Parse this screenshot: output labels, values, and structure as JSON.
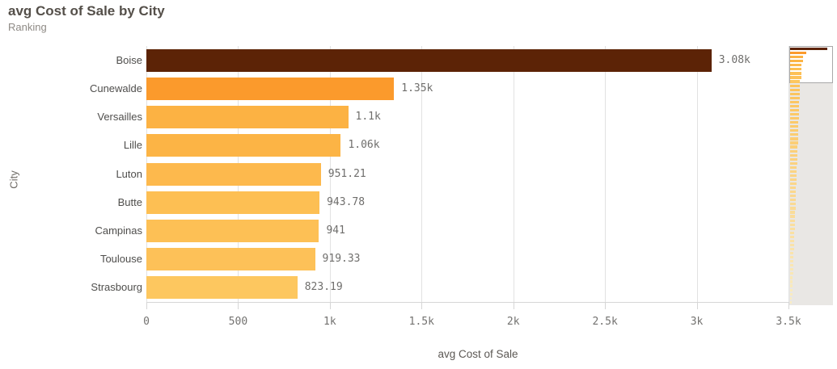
{
  "header": {
    "title": "avg Cost of Sale by City",
    "subtitle": "Ranking"
  },
  "chart_data": {
    "type": "bar",
    "orientation": "horizontal",
    "title": "avg Cost of Sale by City",
    "subtitle": "Ranking",
    "xlabel": "avg Cost of Sale",
    "ylabel": "City",
    "xlim": [
      0,
      3500
    ],
    "grid": "vertical",
    "xticks": [
      {
        "value": 0,
        "label": "0"
      },
      {
        "value": 500,
        "label": "500"
      },
      {
        "value": 1000,
        "label": "1k"
      },
      {
        "value": 1500,
        "label": "1.5k"
      },
      {
        "value": 2000,
        "label": "2k"
      },
      {
        "value": 2500,
        "label": "2.5k"
      },
      {
        "value": 3000,
        "label": "3k"
      },
      {
        "value": 3500,
        "label": "3.5k"
      }
    ],
    "bars": [
      {
        "city": "Boise",
        "value": 3080,
        "label": "3.08k",
        "color": "#5c2306"
      },
      {
        "city": "Cunewalde",
        "value": 1350,
        "label": "1.35k",
        "color": "#fb9a2c"
      },
      {
        "city": "Versailles",
        "value": 1100,
        "label": "1.1k",
        "color": "#fcb243"
      },
      {
        "city": "Lille",
        "value": 1060,
        "label": "1.06k",
        "color": "#fcb445"
      },
      {
        "city": "Luton",
        "value": 951.21,
        "label": "951.21",
        "color": "#fdb94d"
      },
      {
        "city": "Butte",
        "value": 943.78,
        "label": "943.78",
        "color": "#fdbf53"
      },
      {
        "city": "Campinas",
        "value": 941,
        "label": "941",
        "color": "#fdc055"
      },
      {
        "city": "Toulouse",
        "value": 919.33,
        "label": "919.33",
        "color": "#fdc158"
      },
      {
        "city": "Strasbourg",
        "value": 823.19,
        "label": "823.19",
        "color": "#fdc75f"
      }
    ],
    "minimap": {
      "visible_count": 9,
      "rest": {
        "count": 54,
        "value_start": 820,
        "value_end": 150,
        "color_start": "#fcc35a",
        "color_end": "#f9edc4"
      }
    }
  },
  "colors": {
    "gridline": "#e2e2e2",
    "axis_line": "#d6d6d6",
    "tick_label": "#737270",
    "value_label": "#6f6e6c",
    "category_label": "#4f4e4c",
    "minimap_track": "#e9e7e4",
    "minimap_viewport_border": "#a8a8a8"
  }
}
